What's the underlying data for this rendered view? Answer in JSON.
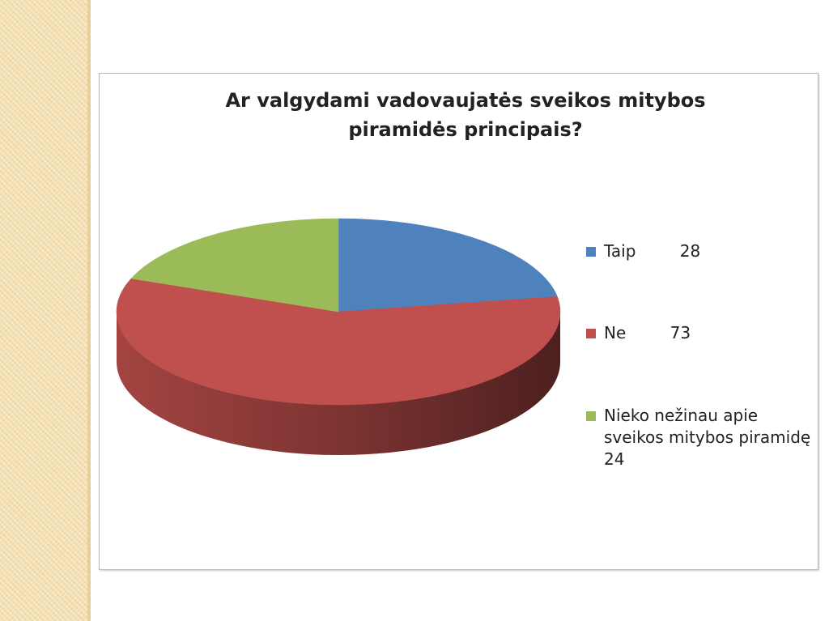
{
  "chart_data": {
    "type": "pie",
    "title": "Ar valgydami vadovaujatės sveikos mitybos piramidės principais?",
    "categories": [
      "Taip",
      "Ne",
      "Nieko nežinau apie sveikos mitybos piramidę"
    ],
    "values": [
      28,
      73,
      24
    ],
    "colors": [
      "#4f81bd",
      "#c0504d",
      "#9bbb59"
    ],
    "legend": "right"
  }
}
